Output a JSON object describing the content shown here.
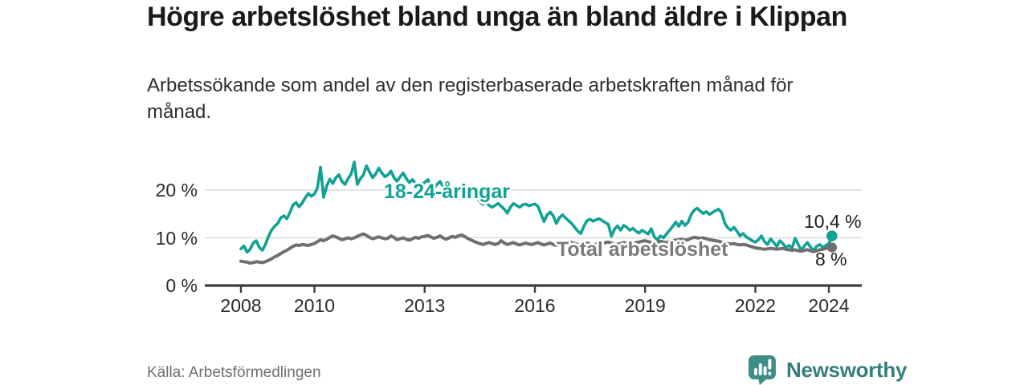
{
  "header": {
    "title": "Högre arbetslöshet bland unga än bland äldre i Klippan",
    "subtitle": "Arbetssökande som andel av den registerbaserade arbetskraften månad för månad."
  },
  "footer": {
    "source": "Källa: Arbetsförmedlingen"
  },
  "logo": {
    "text": "Newsworthy",
    "icon": "newsworthy-speech-bubble-bar-chart-icon",
    "icon_color": "#3e8e88",
    "text_color": "#357e79"
  },
  "colors": {
    "accent_teal": "#11a294",
    "series_gray": "#6f6f6f",
    "axis": "#3d3d3d",
    "gridline": "#dadada",
    "title_text": "#1a1a1a",
    "tick_text": "#2b2b2b",
    "source_text": "#6e6e6e"
  },
  "chart_data": {
    "type": "line",
    "title": "Högre arbetslöshet bland unga än bland äldre i Klippan",
    "subtitle": "Arbetssökande som andel av den registerbaserade arbetskraften månad för månad.",
    "source": "Källa: Arbetsförmedlingen",
    "unit": "%",
    "grid": "horizontal",
    "legend_position": "inline-labels",
    "x_axis": {
      "ticks": [
        2008,
        2010,
        2013,
        2016,
        2019,
        2022,
        2024
      ],
      "start": 2008.0,
      "end": 2024.083,
      "interval": "monthly"
    },
    "y_axis": {
      "ticks": [
        {
          "value": 0,
          "label": "0 %"
        },
        {
          "value": 10,
          "label": "10 %"
        },
        {
          "value": 20,
          "label": "20 %"
        }
      ],
      "min": 0,
      "max": 27
    },
    "series": [
      {
        "name": "18-24-åringar",
        "color": "#11a294",
        "start": "2008-01",
        "end": "2024-02",
        "end_label": "10,4 %",
        "end_value": 10.4,
        "values": [
          7.7,
          8.3,
          7.0,
          7.6,
          8.9,
          9.4,
          8.0,
          7.4,
          8.6,
          10.3,
          11.6,
          12.4,
          13.0,
          14.2,
          14.6,
          14.0,
          15.3,
          16.9,
          17.4,
          16.5,
          17.3,
          18.4,
          19.3,
          18.7,
          19.2,
          20.5,
          24.8,
          18.5,
          20.8,
          22.3,
          21.4,
          22.6,
          23.2,
          21.8,
          21.2,
          22.4,
          23.4,
          25.9,
          21.2,
          22.4,
          23.2,
          25.1,
          23.8,
          22.6,
          23.4,
          24.6,
          23.6,
          22.8,
          23.2,
          24.0,
          22.6,
          21.8,
          22.8,
          23.6,
          22.4,
          21.6,
          22.2,
          21.4,
          20.8,
          21.2,
          21.6,
          22.2,
          21.0,
          20.4,
          21.2,
          21.8,
          20.8,
          20.0,
          20.6,
          19.8,
          19.2,
          19.6,
          20.0,
          19.4,
          18.6,
          18.2,
          19.0,
          18.4,
          17.6,
          17.0,
          17.5,
          16.8,
          16.4,
          16.8,
          17.2,
          16.6,
          16.0,
          15.2,
          16.4,
          17.2,
          16.8,
          16.4,
          16.9,
          17.1,
          16.7,
          16.9,
          17.1,
          16.6,
          15.0,
          13.4,
          14.8,
          15.4,
          14.6,
          13.0,
          14.2,
          14.8,
          14.2,
          13.6,
          13.0,
          12.2,
          11.4,
          10.9,
          12.4,
          13.6,
          13.9,
          13.5,
          13.8,
          14.0,
          13.6,
          13.2,
          12.8,
          10.3,
          11.8,
          12.5,
          11.6,
          12.6,
          12.2,
          11.6,
          12.0,
          11.4,
          11.0,
          11.6,
          11.2,
          10.8,
          11.9,
          10.2,
          9.6,
          10.4,
          10.0,
          10.8,
          11.6,
          12.4,
          13.3,
          12.4,
          13.5,
          12.6,
          13.2,
          14.8,
          15.8,
          16.2,
          15.6,
          15.1,
          15.5,
          14.9,
          15.3,
          15.7,
          16.0,
          15.3,
          13.1,
          12.1,
          11.6,
          12.2,
          11.4,
          10.4,
          10.9,
          10.2,
          9.8,
          9.4,
          9.1,
          9.6,
          10.4,
          9.2,
          8.6,
          9.8,
          9.0,
          8.2,
          9.4,
          8.8,
          8.0,
          8.4,
          7.9,
          9.9,
          8.6,
          7.4,
          8.3,
          9.0,
          8.1,
          7.3,
          8.2,
          8.6,
          8.0,
          8.4,
          8.8,
          10.4
        ]
      },
      {
        "name": "Total arbetslöshet",
        "color": "#6f6f6f",
        "start": "2008-01",
        "end": "2024-02",
        "end_label": "8 %",
        "end_value": 8.0,
        "values": [
          5.1,
          5.0,
          4.9,
          4.7,
          4.8,
          5.0,
          4.9,
          4.8,
          5.0,
          5.3,
          5.6,
          6.0,
          6.3,
          6.7,
          7.1,
          7.4,
          7.8,
          8.2,
          8.5,
          8.4,
          8.6,
          8.5,
          8.4,
          8.6,
          8.8,
          9.2,
          9.6,
          9.4,
          9.7,
          10.1,
          10.4,
          10.2,
          9.9,
          9.6,
          9.8,
          10.0,
          9.8,
          10.0,
          10.3,
          10.6,
          10.8,
          10.5,
          10.1,
          9.8,
          10.0,
          10.2,
          10.0,
          9.8,
          9.9,
          10.4,
          10.1,
          9.6,
          9.8,
          10.0,
          9.7,
          9.5,
          9.8,
          10.1,
          9.9,
          10.2,
          10.3,
          10.5,
          10.2,
          9.9,
          10.1,
          10.4,
          10.0,
          9.7,
          10.0,
          10.3,
          10.1,
          10.4,
          10.6,
          10.3,
          9.9,
          9.6,
          9.3,
          9.0,
          8.8,
          8.6,
          8.8,
          9.0,
          8.8,
          8.6,
          8.8,
          9.4,
          8.9,
          8.6,
          8.8,
          9.0,
          8.7,
          8.5,
          8.7,
          8.9,
          8.7,
          8.6,
          8.8,
          9.0,
          8.7,
          8.5,
          8.7,
          8.9,
          8.6,
          8.4,
          8.6,
          8.8,
          8.7,
          8.9,
          9.0,
          8.8,
          8.6,
          8.5,
          8.7,
          8.9,
          8.7,
          8.5,
          8.7,
          8.9,
          8.8,
          9.0,
          9.1,
          8.9,
          8.7,
          8.6,
          8.8,
          9.0,
          8.8,
          8.6,
          8.8,
          9.0,
          9.1,
          9.3,
          9.4,
          9.2,
          9.0,
          8.9,
          9.1,
          9.3,
          9.1,
          9.0,
          9.2,
          9.4,
          9.5,
          9.6,
          9.7,
          9.5,
          9.6,
          9.9,
          10.1,
          10.0,
          9.9,
          10.0,
          9.8,
          9.6,
          9.5,
          9.4,
          9.3,
          9.1,
          8.9,
          8.8,
          8.7,
          8.8,
          8.6,
          8.5,
          8.6,
          8.5,
          8.3,
          8.1,
          7.9,
          7.8,
          7.7,
          7.6,
          7.7,
          7.8,
          7.7,
          7.6,
          7.7,
          7.8,
          7.6,
          7.5,
          7.4,
          7.5,
          7.3,
          7.2,
          7.4,
          7.5,
          7.3,
          7.1,
          7.3,
          7.5,
          7.6,
          7.8,
          7.9,
          8.0
        ]
      }
    ]
  }
}
